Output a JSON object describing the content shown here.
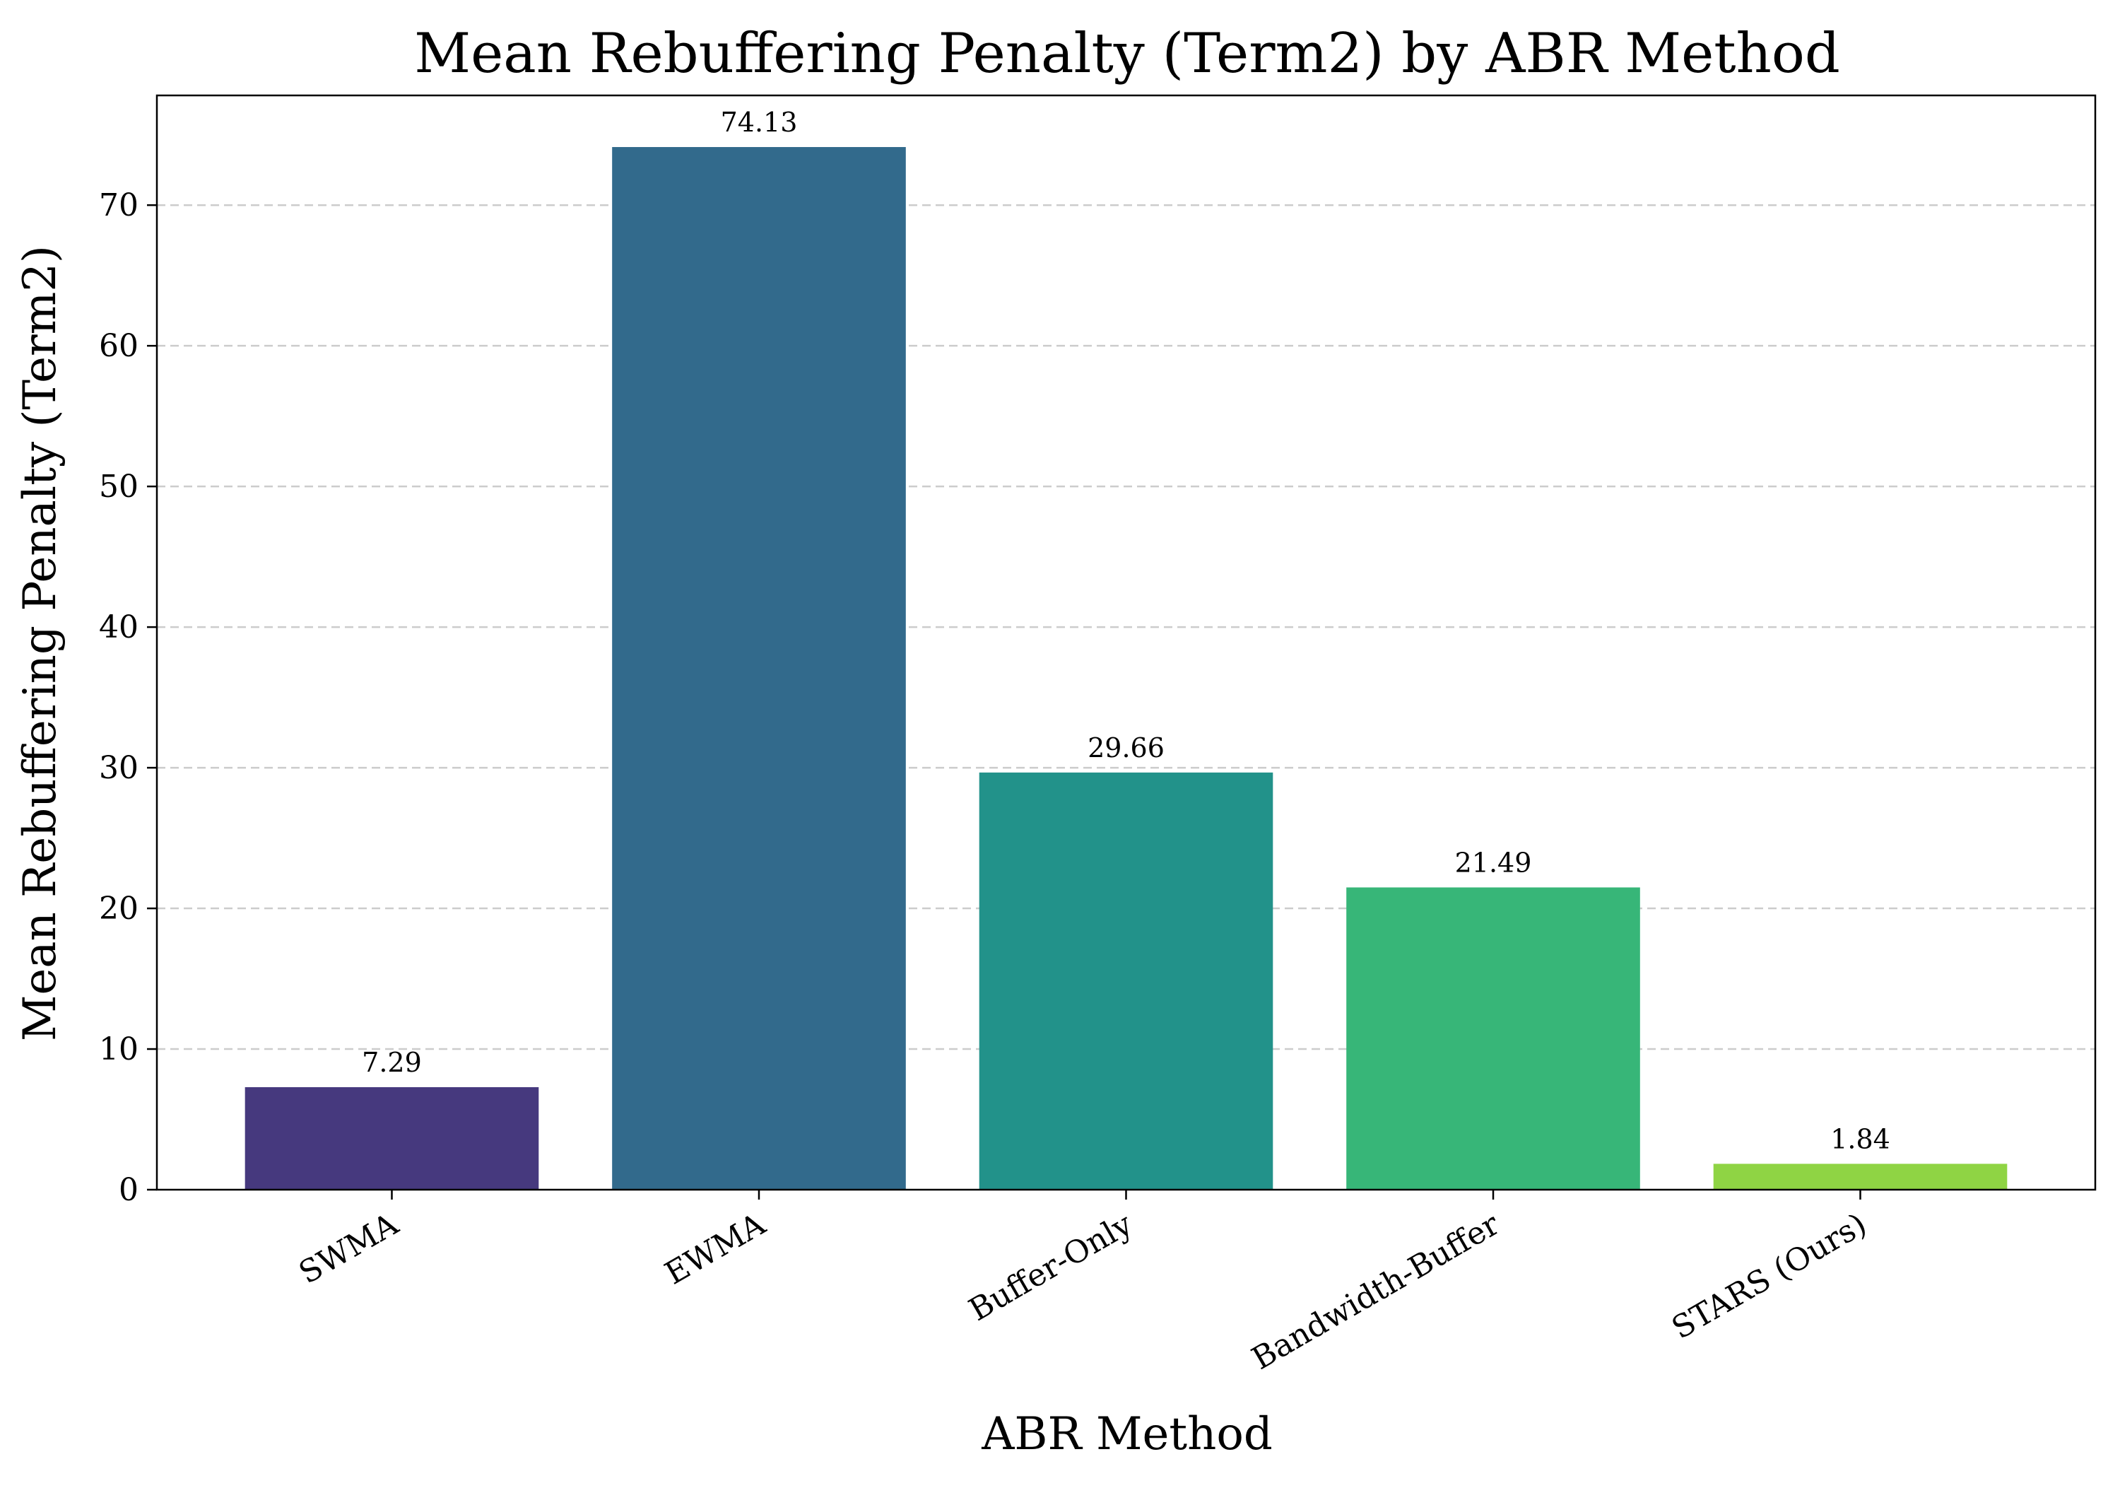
{
  "chart_data": {
    "type": "bar",
    "title": "Mean Rebuffering Penalty (Term2) by ABR Method",
    "xlabel": "ABR Method",
    "ylabel": "Mean Rebuffering Penalty (Term2)",
    "categories": [
      "SWMA",
      "EWMA",
      "Buffer-Only",
      "Bandwidth-Buffer",
      "STARS (Ours)"
    ],
    "values": [
      7.29,
      74.13,
      29.66,
      21.49,
      1.84
    ],
    "data_labels": [
      "7.29",
      "74.13",
      "29.66",
      "21.49",
      "1.84"
    ],
    "colors": [
      "#46397e",
      "#326a8c",
      "#22928a",
      "#37b678",
      "#8fd444"
    ],
    "ylim": [
      0,
      77.8
    ],
    "yticks": [
      0,
      10,
      20,
      30,
      40,
      50,
      60,
      70
    ],
    "grid": "y-dashed",
    "legend": "none"
  }
}
